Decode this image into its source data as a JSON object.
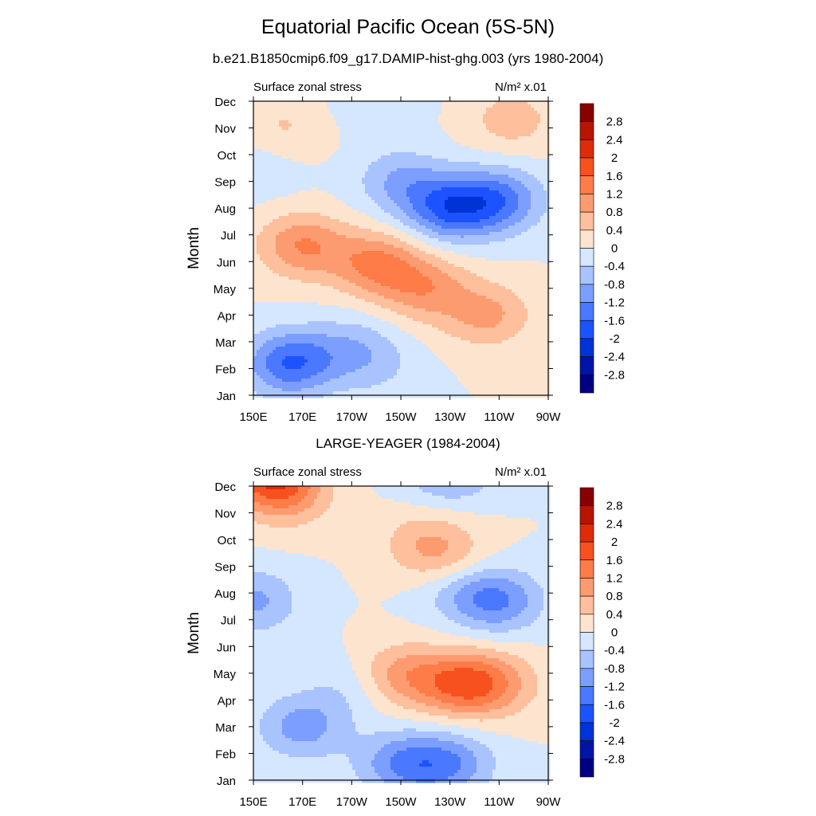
{
  "page": {
    "title": "Equatorial Pacific Ocean (5S-5N)",
    "subtitle": "b.e21.B1850cmip6.f09_g17.DAMIP-hist-ghg.003 (yrs 1980-2004)"
  },
  "chart_data": [
    {
      "type": "heatmap",
      "title": "",
      "left_label": "Surface zonal stress",
      "right_label": "N/m² x.01",
      "xlabel": "",
      "ylabel": "Month",
      "x_ticks": [
        "150E",
        "170E",
        "170W",
        "150W",
        "130W",
        "110W",
        "90W"
      ],
      "y_ticks": [
        "Jan",
        "Feb",
        "Mar",
        "Apr",
        "May",
        "Jun",
        "Jul",
        "Aug",
        "Sep",
        "Oct",
        "Nov",
        "Dec"
      ],
      "x_range_deg": [
        150,
        270
      ],
      "colorbar_labels": [
        "2.8",
        "2.4",
        "2",
        "1.6",
        "1.2",
        "0.8",
        "0.4",
        "0",
        "-0.4",
        "-0.8",
        "-1.2",
        "-1.6",
        "-2",
        "-2.4",
        "-2.8"
      ],
      "blobs": [
        {
          "lon": 162,
          "month": 10.0,
          "value": 0.45
        },
        {
          "lon": 255,
          "month": 10.3,
          "value": 0.6
        },
        {
          "lon": 200,
          "month": 11.0,
          "value": -0.35
        },
        {
          "lon": 230,
          "month": 7.0,
          "value": -1.6
        },
        {
          "lon": 250,
          "month": 7.3,
          "value": -1.3
        },
        {
          "lon": 210,
          "month": 8.0,
          "value": -0.8
        },
        {
          "lon": 152,
          "month": 8.5,
          "value": -0.3
        },
        {
          "lon": 170,
          "month": 5.6,
          "value": 1.2
        },
        {
          "lon": 200,
          "month": 4.9,
          "value": 1.25
        },
        {
          "lon": 220,
          "month": 4.0,
          "value": 1.0
        },
        {
          "lon": 245,
          "month": 3.0,
          "value": 0.9
        },
        {
          "lon": 165,
          "month": 1.2,
          "value": -1.6
        },
        {
          "lon": 190,
          "month": 1.8,
          "value": -0.6
        },
        {
          "lon": 200,
          "month": 1.0,
          "value": -0.35
        }
      ]
    },
    {
      "type": "heatmap",
      "title": "LARGE-YEAGER (1984-2004)",
      "left_label": "Surface zonal stress",
      "right_label": "N/m² x.01",
      "xlabel": "",
      "ylabel": "Month",
      "x_ticks": [
        "150E",
        "170E",
        "170W",
        "150W",
        "130W",
        "110W",
        "90W"
      ],
      "y_ticks": [
        "Jan",
        "Feb",
        "Mar",
        "Apr",
        "May",
        "Jun",
        "Jul",
        "Aug",
        "Sep",
        "Oct",
        "Nov",
        "Dec"
      ],
      "x_range_deg": [
        150,
        270
      ],
      "colorbar_labels": [
        "2.8",
        "2.4",
        "2",
        "1.6",
        "1.2",
        "0.8",
        "0.4",
        "0",
        "-0.4",
        "-0.8",
        "-1.2",
        "-1.6",
        "-2",
        "-2.4",
        "-2.8"
      ],
      "blobs": [
        {
          "lon": 157,
          "month": 11.4,
          "value": 1.9
        },
        {
          "lon": 165,
          "month": 10.5,
          "value": 0.6
        },
        {
          "lon": 230,
          "month": 11.6,
          "value": -1.0
        },
        {
          "lon": 220,
          "month": 8.9,
          "value": 0.65
        },
        {
          "lon": 230,
          "month": 8.2,
          "value": 0.5
        },
        {
          "lon": 150,
          "month": 6.7,
          "value": -0.9
        },
        {
          "lon": 250,
          "month": 6.7,
          "value": -1.1
        },
        {
          "lon": 235,
          "month": 7.1,
          "value": -0.6
        },
        {
          "lon": 235,
          "month": 3.6,
          "value": 1.5
        },
        {
          "lon": 210,
          "month": 3.9,
          "value": 1.0
        },
        {
          "lon": 250,
          "month": 3.6,
          "value": 0.7
        },
        {
          "lon": 170,
          "month": 2.0,
          "value": -1.0
        },
        {
          "lon": 210,
          "month": 0.6,
          "value": -1.1
        },
        {
          "lon": 230,
          "month": 0.6,
          "value": -1.1
        },
        {
          "lon": 190,
          "month": 3.5,
          "value": -0.4
        }
      ]
    }
  ],
  "colors": {
    "scale": [
      "#000080",
      "#0014a5",
      "#0033d6",
      "#1d52ff",
      "#4a78ff",
      "#7b9eff",
      "#a9c3ff",
      "#d5e6ff",
      "#fde4cf",
      "#fdbf9c",
      "#fd9b70",
      "#fd7c48",
      "#f6511e",
      "#e02b08",
      "#b81500",
      "#880000"
    ]
  }
}
